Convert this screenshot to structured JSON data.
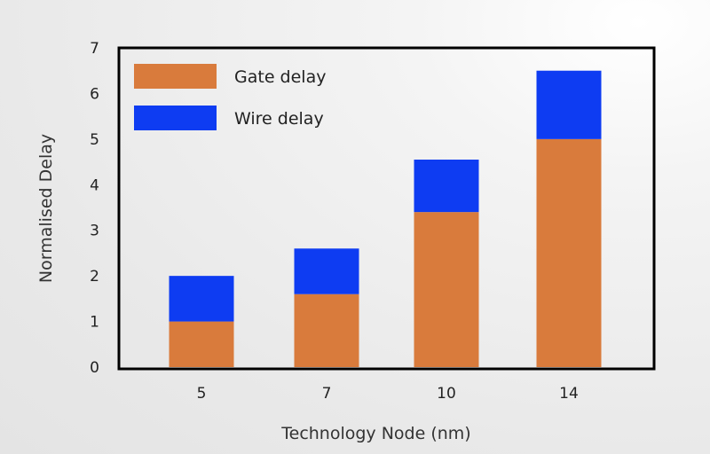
{
  "chart_data": {
    "type": "bar",
    "stacked": true,
    "categories": [
      "5",
      "7",
      "10",
      "14"
    ],
    "series": [
      {
        "name": "Gate delay",
        "values": [
          1.0,
          1.6,
          3.4,
          5.0
        ],
        "color": "#D97B3C"
      },
      {
        "name": "Wire delay",
        "values": [
          1.0,
          1.0,
          1.15,
          1.5
        ],
        "color": "#0E3CF2"
      }
    ],
    "xlabel": "Technology Node (nm)",
    "ylabel": "Normalised Delay",
    "ylim": [
      0,
      7
    ],
    "yticks": [
      "0",
      "1",
      "2",
      "3",
      "4",
      "5",
      "6",
      "7"
    ],
    "grid": false,
    "legend_position": "top-left"
  }
}
